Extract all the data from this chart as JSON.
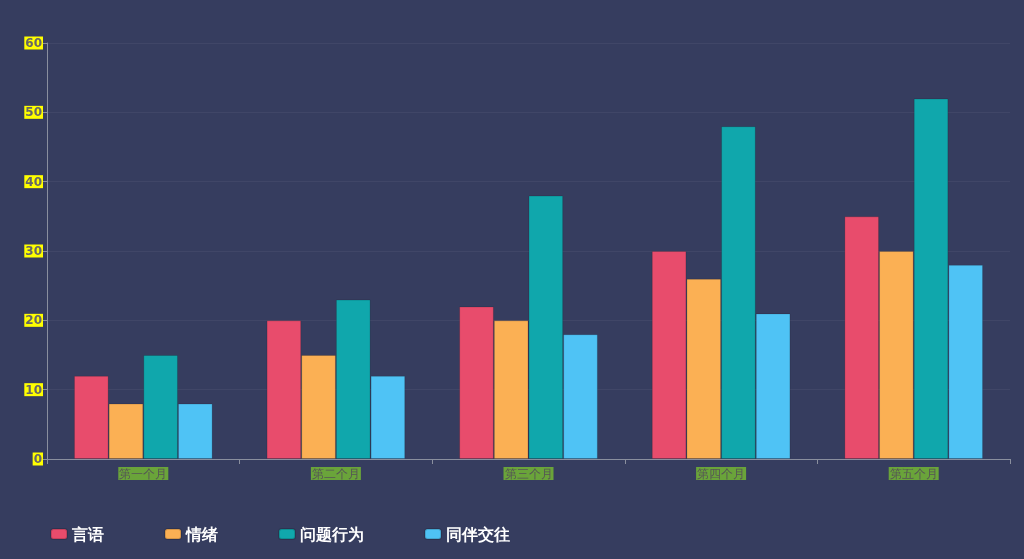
{
  "chart_data": {
    "type": "bar",
    "categories": [
      "第一个月",
      "第二个月",
      "第三个月",
      "第四个月",
      "第五个月"
    ],
    "series": [
      {
        "name": "言语",
        "color": "#e84c6c",
        "values": [
          12,
          20,
          22,
          30,
          35
        ]
      },
      {
        "name": "情绪",
        "color": "#fbb054",
        "values": [
          8,
          15,
          20,
          26,
          30
        ]
      },
      {
        "name": "问题行为",
        "color": "#10a7ac",
        "values": [
          15,
          23,
          38,
          48,
          52
        ]
      },
      {
        "name": "同伴交往",
        "color": "#4fc3f5",
        "values": [
          8,
          12,
          18,
          21,
          28
        ]
      }
    ],
    "ylim": [
      0,
      60
    ],
    "yticks": [
      0,
      10,
      20,
      30,
      40,
      50,
      60
    ],
    "grid": "y",
    "legend": "bottom left"
  }
}
